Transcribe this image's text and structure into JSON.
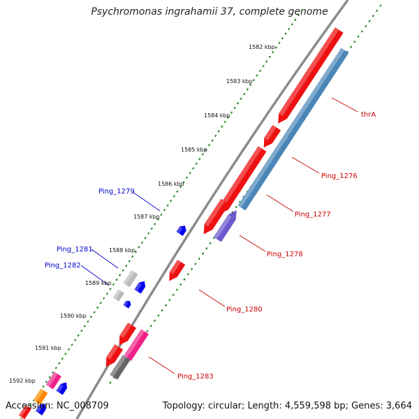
{
  "title": "Psychromonas ingrahamii 37, complete genome",
  "footer": {
    "accession": "Accession: NC_008709",
    "summary": "Topology: circular; Length: 4,559,598 bp; Genes: 3,664"
  },
  "scale_labels": [
    "1582 kbp",
    "1583 kbp",
    "1584 kbp",
    "1585 kbp",
    "1586 kbp",
    "1587 kbp",
    "1588 kbp",
    "1589 kbp",
    "1590 kbp",
    "1591 kbp",
    "1592 kbp"
  ],
  "gene_labels": {
    "left": [
      "Ping_1279",
      "Ping_1281",
      "Ping_1282"
    ],
    "right": [
      "thrA",
      "Ping_1276",
      "Ping_1277",
      "Ping_1278",
      "Ping_1280",
      "Ping_1283"
    ]
  },
  "colors": {
    "backbone": "#888888",
    "scale_dots": "#2e8b2e",
    "label_left": "#0000cc",
    "label_right": "#cc0000",
    "gene_red": "#ee1111",
    "gene_blue": "#0000ee",
    "gene_steelblue": "#4a86b8",
    "gene_violet": "#6a5acd",
    "gene_pink": "#ee2288",
    "gene_grey": "#bbbbbb",
    "gene_darkgrey": "#666666",
    "gene_orange": "#ff8800"
  }
}
